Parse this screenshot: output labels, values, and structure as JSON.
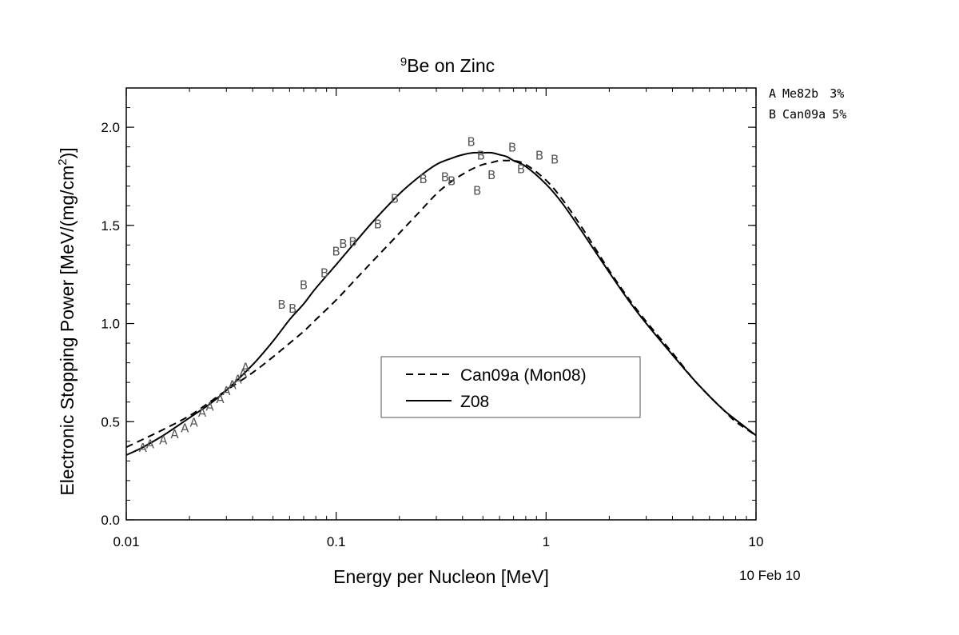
{
  "chart_data": {
    "type": "line",
    "title": {
      "prefix_sup": "9",
      "main": "Be on Zinc"
    },
    "xlabel": "Energy per Nucleon [MeV]",
    "ylabel": {
      "main": "Electronic Stopping Power [MeV/(mg/cm",
      "sup": "2",
      "tail": ")]"
    },
    "x_scale": "log",
    "xlim": [
      0.01,
      10
    ],
    "ylim": [
      0.0,
      2.2
    ],
    "x_ticks": [
      {
        "value": 0.01,
        "label": "0.01"
      },
      {
        "value": 0.1,
        "label": "0.1"
      },
      {
        "value": 1,
        "label": "1"
      },
      {
        "value": 10,
        "label": "10"
      }
    ],
    "y_ticks": [
      {
        "value": 0.0,
        "label": "0.0"
      },
      {
        "value": 0.5,
        "label": "0.5"
      },
      {
        "value": 1.0,
        "label": "1.0"
      },
      {
        "value": 1.5,
        "label": "1.5"
      },
      {
        "value": 2.0,
        "label": "2.0"
      }
    ],
    "grid": false,
    "legend_position": "center-right",
    "series": [
      {
        "name": "Can09a (Mon08)",
        "style": "dashed",
        "color": "#000000",
        "x": [
          0.01,
          0.012,
          0.015,
          0.02,
          0.025,
          0.03,
          0.04,
          0.05,
          0.06,
          0.07,
          0.08,
          0.1,
          0.12,
          0.15,
          0.2,
          0.25,
          0.3,
          0.35,
          0.4,
          0.45,
          0.5,
          0.55,
          0.6,
          0.65,
          0.7,
          0.8,
          1.0,
          1.2,
          1.5,
          2.0,
          2.5,
          3.0,
          4.0,
          5.0,
          6.0,
          7.0,
          8.0,
          10.0
        ],
        "y": [
          0.37,
          0.41,
          0.46,
          0.53,
          0.6,
          0.66,
          0.75,
          0.83,
          0.9,
          0.96,
          1.02,
          1.12,
          1.21,
          1.32,
          1.46,
          1.57,
          1.66,
          1.72,
          1.76,
          1.79,
          1.81,
          1.82,
          1.83,
          1.83,
          1.83,
          1.81,
          1.73,
          1.63,
          1.48,
          1.27,
          1.12,
          1.01,
          0.85,
          0.72,
          0.63,
          0.56,
          0.5,
          0.43
        ]
      },
      {
        "name": "Z08",
        "style": "solid",
        "color": "#000000",
        "x": [
          0.01,
          0.012,
          0.015,
          0.02,
          0.025,
          0.03,
          0.04,
          0.05,
          0.06,
          0.07,
          0.08,
          0.1,
          0.12,
          0.15,
          0.2,
          0.25,
          0.3,
          0.35,
          0.4,
          0.45,
          0.5,
          0.55,
          0.6,
          0.65,
          0.7,
          0.8,
          1.0,
          1.2,
          1.5,
          2.0,
          2.5,
          3.0,
          4.0,
          5.0,
          6.0,
          7.0,
          8.0,
          10.0
        ],
        "y": [
          0.33,
          0.37,
          0.43,
          0.52,
          0.59,
          0.66,
          0.79,
          0.91,
          1.02,
          1.1,
          1.18,
          1.3,
          1.4,
          1.52,
          1.66,
          1.75,
          1.81,
          1.84,
          1.86,
          1.87,
          1.87,
          1.87,
          1.86,
          1.85,
          1.83,
          1.8,
          1.71,
          1.61,
          1.46,
          1.26,
          1.11,
          1.0,
          0.84,
          0.72,
          0.63,
          0.56,
          0.51,
          0.43
        ]
      }
    ],
    "data_points": [
      {
        "label": "A",
        "x": 0.012,
        "y": 0.37
      },
      {
        "label": "A",
        "x": 0.013,
        "y": 0.39
      },
      {
        "label": "A",
        "x": 0.015,
        "y": 0.41
      },
      {
        "label": "A",
        "x": 0.017,
        "y": 0.44
      },
      {
        "label": "A",
        "x": 0.019,
        "y": 0.47
      },
      {
        "label": "A",
        "x": 0.021,
        "y": 0.5
      },
      {
        "label": "A",
        "x": 0.023,
        "y": 0.55
      },
      {
        "label": "A",
        "x": 0.025,
        "y": 0.58
      },
      {
        "label": "A",
        "x": 0.028,
        "y": 0.62
      },
      {
        "label": "A",
        "x": 0.03,
        "y": 0.66
      },
      {
        "label": "A",
        "x": 0.032,
        "y": 0.69
      },
      {
        "label": "A",
        "x": 0.034,
        "y": 0.72
      },
      {
        "label": "A",
        "x": 0.036,
        "y": 0.75
      },
      {
        "label": "A",
        "x": 0.037,
        "y": 0.78
      },
      {
        "label": "B",
        "x": 0.055,
        "y": 1.1
      },
      {
        "label": "B",
        "x": 0.062,
        "y": 1.08
      },
      {
        "label": "B",
        "x": 0.07,
        "y": 1.2
      },
      {
        "label": "B",
        "x": 0.088,
        "y": 1.26
      },
      {
        "label": "B",
        "x": 0.1,
        "y": 1.37
      },
      {
        "label": "B",
        "x": 0.108,
        "y": 1.41
      },
      {
        "label": "B",
        "x": 0.12,
        "y": 1.42
      },
      {
        "label": "B",
        "x": 0.158,
        "y": 1.51
      },
      {
        "label": "B",
        "x": 0.19,
        "y": 1.64
      },
      {
        "label": "B",
        "x": 0.26,
        "y": 1.74
      },
      {
        "label": "B",
        "x": 0.33,
        "y": 1.75
      },
      {
        "label": "B",
        "x": 0.355,
        "y": 1.73
      },
      {
        "label": "B",
        "x": 0.44,
        "y": 1.93
      },
      {
        "label": "B",
        "x": 0.47,
        "y": 1.68
      },
      {
        "label": "B",
        "x": 0.49,
        "y": 1.86
      },
      {
        "label": "B",
        "x": 0.55,
        "y": 1.76
      },
      {
        "label": "B",
        "x": 0.69,
        "y": 1.9
      },
      {
        "label": "B",
        "x": 0.76,
        "y": 1.79
      },
      {
        "label": "B",
        "x": 0.93,
        "y": 1.86
      },
      {
        "label": "B",
        "x": 1.1,
        "y": 1.84
      }
    ],
    "dataset_legend": [
      {
        "label": "A",
        "ref": "Me82b",
        "err": "3%"
      },
      {
        "label": "B",
        "ref": "Can09a",
        "err": "5%"
      }
    ],
    "date_stamp": "10 Feb 10"
  }
}
